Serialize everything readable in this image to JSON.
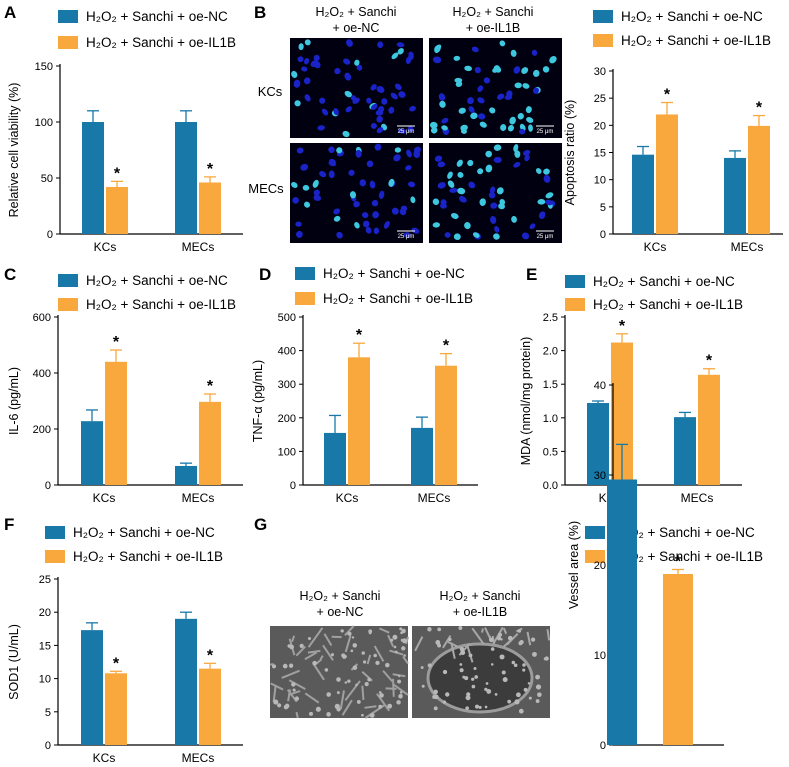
{
  "colors": {
    "nc": "#1878a8",
    "il1b": "#f9a83e",
    "axis": "#000000"
  },
  "legend": {
    "nc": "H₂O₂ + Sanchi + oe-NC",
    "il1b": "H₂O₂ + Sanchi + oe-IL1B"
  },
  "panel_B_images": {
    "col_titles": [
      [
        "H₂O₂ + Sanchi",
        "+ oe-NC"
      ],
      [
        "H₂O₂ + Sanchi",
        "+ oe-IL1B"
      ]
    ],
    "row_labels": [
      "KCs",
      "MECs"
    ],
    "scale_label": "25 μm"
  },
  "panel_G_images": {
    "col_titles": [
      [
        "H₂O₂ + Sanchi",
        "+ oe-NC"
      ],
      [
        "H₂O₂ + Sanchi",
        "+ oe-IL1B"
      ]
    ]
  },
  "chart_data": [
    {
      "id": "A",
      "type": "bar",
      "categories": [
        "KCs",
        "MECs"
      ],
      "series": [
        {
          "name": "H₂O₂ + Sanchi + oe-NC",
          "values": [
            100,
            100
          ],
          "errors": [
            10,
            10
          ]
        },
        {
          "name": "H₂O₂ + Sanchi + oe-IL1B",
          "values": [
            42,
            46
          ],
          "errors": [
            5,
            5
          ]
        }
      ],
      "significant": [
        false,
        true
      ],
      "ylabel": "Relative cell viability (%)",
      "ylim": [
        0,
        150
      ],
      "yticks": [
        0,
        50,
        100,
        150
      ]
    },
    {
      "id": "B",
      "type": "bar",
      "categories": [
        "KCs",
        "MECs"
      ],
      "series": [
        {
          "name": "H₂O₂ + Sanchi + oe-NC",
          "values": [
            14.6,
            14.0
          ],
          "errors": [
            1.5,
            1.3
          ]
        },
        {
          "name": "H₂O₂ + Sanchi + oe-IL1B",
          "values": [
            22.0,
            19.9
          ],
          "errors": [
            2.2,
            1.9
          ]
        }
      ],
      "significant": [
        false,
        true
      ],
      "ylabel": "Apoptosis ratio (%)",
      "ylim": [
        0,
        30
      ],
      "yticks": [
        0,
        5,
        10,
        15,
        20,
        25,
        30
      ]
    },
    {
      "id": "C",
      "type": "bar",
      "categories": [
        "KCs",
        "MECs"
      ],
      "series": [
        {
          "name": "H₂O₂ + Sanchi + oe-NC",
          "values": [
            228,
            68
          ],
          "errors": [
            40,
            10
          ]
        },
        {
          "name": "H₂O₂ + Sanchi + oe-IL1B",
          "values": [
            440,
            297
          ],
          "errors": [
            42,
            28
          ]
        }
      ],
      "significant": [
        false,
        true
      ],
      "ylabel": "IL-6 (pg/mL)",
      "ylim": [
        0,
        600
      ],
      "yticks": [
        0,
        200,
        400,
        600
      ]
    },
    {
      "id": "D",
      "type": "bar",
      "categories": [
        "KCs",
        "MECs"
      ],
      "series": [
        {
          "name": "H₂O₂ + Sanchi + oe-NC",
          "values": [
            155,
            170
          ],
          "errors": [
            52,
            32
          ]
        },
        {
          "name": "H₂O₂ + Sanchi + oe-IL1B",
          "values": [
            380,
            355
          ],
          "errors": [
            42,
            36
          ]
        }
      ],
      "significant": [
        false,
        true
      ],
      "ylabel": "TNF-α (pg/mL)",
      "ylim": [
        0,
        500
      ],
      "yticks": [
        0,
        100,
        200,
        300,
        400,
        500
      ]
    },
    {
      "id": "E",
      "type": "bar",
      "categories": [
        "KCs",
        "MECs"
      ],
      "series": [
        {
          "name": "H₂O₂ + Sanchi + oe-NC",
          "values": [
            1.22,
            1.01
          ],
          "errors": [
            0.03,
            0.07
          ]
        },
        {
          "name": "H₂O₂ + Sanchi + oe-IL1B",
          "values": [
            2.12,
            1.64
          ],
          "errors": [
            0.13,
            0.09
          ]
        }
      ],
      "significant": [
        false,
        true
      ],
      "ylabel": "MDA (nmol/mg protein)",
      "ylim": [
        0,
        2.5
      ],
      "yticks": [
        "0.0",
        "0.5",
        "1.0",
        "1.5",
        "2.0",
        "2.5"
      ]
    },
    {
      "id": "F",
      "type": "bar",
      "categories": [
        "KCs",
        "MECs"
      ],
      "series": [
        {
          "name": "H₂O₂ + Sanchi + oe-NC",
          "values": [
            17.3,
            19.0
          ],
          "errors": [
            1.1,
            1.0
          ]
        },
        {
          "name": "H₂O₂ + Sanchi + oe-IL1B",
          "values": [
            10.8,
            11.5
          ],
          "errors": [
            0.3,
            0.8
          ]
        }
      ],
      "significant": [
        false,
        true
      ],
      "ylabel": "SOD1 (U/mL)",
      "ylim": [
        0,
        25
      ],
      "yticks": [
        0,
        5,
        10,
        15,
        20,
        25
      ]
    },
    {
      "id": "G",
      "type": "bar",
      "categories": [
        ""
      ],
      "series": [
        {
          "name": "H₂O₂ + Sanchi + oe-NC",
          "values": [
            29.5
          ],
          "errors": [
            3.9
          ]
        },
        {
          "name": "H₂O₂ + Sanchi + oe-IL1B",
          "values": [
            19.0
          ],
          "errors": [
            0.5
          ]
        }
      ],
      "significant": [
        false,
        true
      ],
      "ylabel": "Vessel area (%)",
      "ylim": [
        0,
        40
      ],
      "yticks": [
        0,
        10,
        20,
        30,
        40
      ]
    }
  ],
  "significance_mark": "*",
  "panel_letters": [
    "A",
    "B",
    "C",
    "D",
    "E",
    "F",
    "G"
  ]
}
